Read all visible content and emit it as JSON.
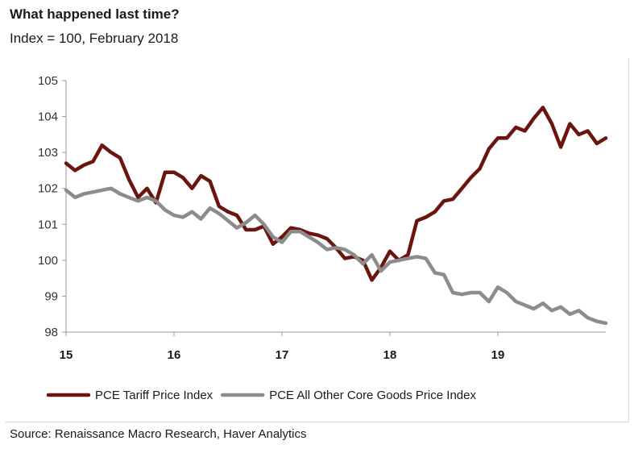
{
  "title": "What happened last time?",
  "subtitle": "Index = 100, February 2018",
  "source": "Source: Renaissance Macro Research, Haver Analytics",
  "chart_data": {
    "type": "line",
    "title": "What happened last time?",
    "subtitle": "Index = 100, February 2018",
    "xlabel": "",
    "ylabel": "",
    "x_ticks": [
      "15",
      "16",
      "17",
      "18",
      "19"
    ],
    "x_tick_positions": [
      2015,
      2016,
      2017,
      2018,
      2019
    ],
    "xlim": [
      2015.0,
      2020.0
    ],
    "y_ticks": [
      "105",
      "104",
      "103",
      "102",
      "101",
      "100",
      "99",
      "98"
    ],
    "ylim": [
      98,
      105
    ],
    "grid": false,
    "legend_position": "bottom",
    "x": [
      2015.0,
      2015.083,
      2015.167,
      2015.25,
      2015.333,
      2015.417,
      2015.5,
      2015.583,
      2015.667,
      2015.75,
      2015.833,
      2015.917,
      2016.0,
      2016.083,
      2016.167,
      2016.25,
      2016.333,
      2016.417,
      2016.5,
      2016.583,
      2016.667,
      2016.75,
      2016.833,
      2016.917,
      2017.0,
      2017.083,
      2017.167,
      2017.25,
      2017.333,
      2017.417,
      2017.5,
      2017.583,
      2017.667,
      2017.75,
      2017.833,
      2017.917,
      2018.0,
      2018.083,
      2018.167,
      2018.25,
      2018.333,
      2018.417,
      2018.5,
      2018.583,
      2018.667,
      2018.75,
      2018.833,
      2018.917,
      2019.0,
      2019.083,
      2019.167,
      2019.25,
      2019.333,
      2019.417,
      2019.5,
      2019.583,
      2019.667,
      2019.75,
      2019.833,
      2019.917,
      2020.0
    ],
    "series": [
      {
        "name": "PCE Tariff Price Index",
        "color": "#6b150f",
        "values": [
          102.7,
          102.5,
          102.65,
          102.75,
          103.2,
          103.0,
          102.85,
          102.25,
          101.75,
          102.0,
          101.6,
          102.45,
          102.45,
          102.3,
          102.0,
          102.35,
          102.2,
          101.5,
          101.35,
          101.25,
          100.85,
          100.85,
          100.95,
          100.45,
          100.65,
          100.9,
          100.85,
          100.75,
          100.7,
          100.6,
          100.35,
          100.05,
          100.1,
          100.0,
          99.45,
          99.8,
          100.25,
          100.0,
          100.15,
          101.1,
          101.2,
          101.35,
          101.65,
          101.7,
          102.0,
          102.3,
          102.55,
          103.1,
          103.4,
          103.4,
          103.7,
          103.6,
          103.95,
          104.25,
          103.8,
          103.15,
          103.8,
          103.5,
          103.6,
          103.25,
          103.4
        ]
      },
      {
        "name": "PCE All Other Core Goods Price Index",
        "color": "#8c8c8c",
        "values": [
          101.95,
          101.75,
          101.85,
          101.9,
          101.95,
          102.0,
          101.85,
          101.75,
          101.65,
          101.75,
          101.65,
          101.4,
          101.25,
          101.2,
          101.35,
          101.15,
          101.45,
          101.3,
          101.1,
          100.9,
          101.05,
          101.25,
          101.0,
          100.65,
          100.5,
          100.8,
          100.8,
          100.65,
          100.5,
          100.3,
          100.35,
          100.3,
          100.15,
          99.9,
          100.15,
          99.7,
          99.95,
          100.0,
          100.05,
          100.1,
          100.05,
          99.65,
          99.6,
          99.1,
          99.05,
          99.1,
          99.1,
          98.85,
          99.25,
          99.1,
          98.85,
          98.75,
          98.65,
          98.8,
          98.6,
          98.7,
          98.5,
          98.6,
          98.4,
          98.3,
          98.25
        ]
      }
    ]
  }
}
